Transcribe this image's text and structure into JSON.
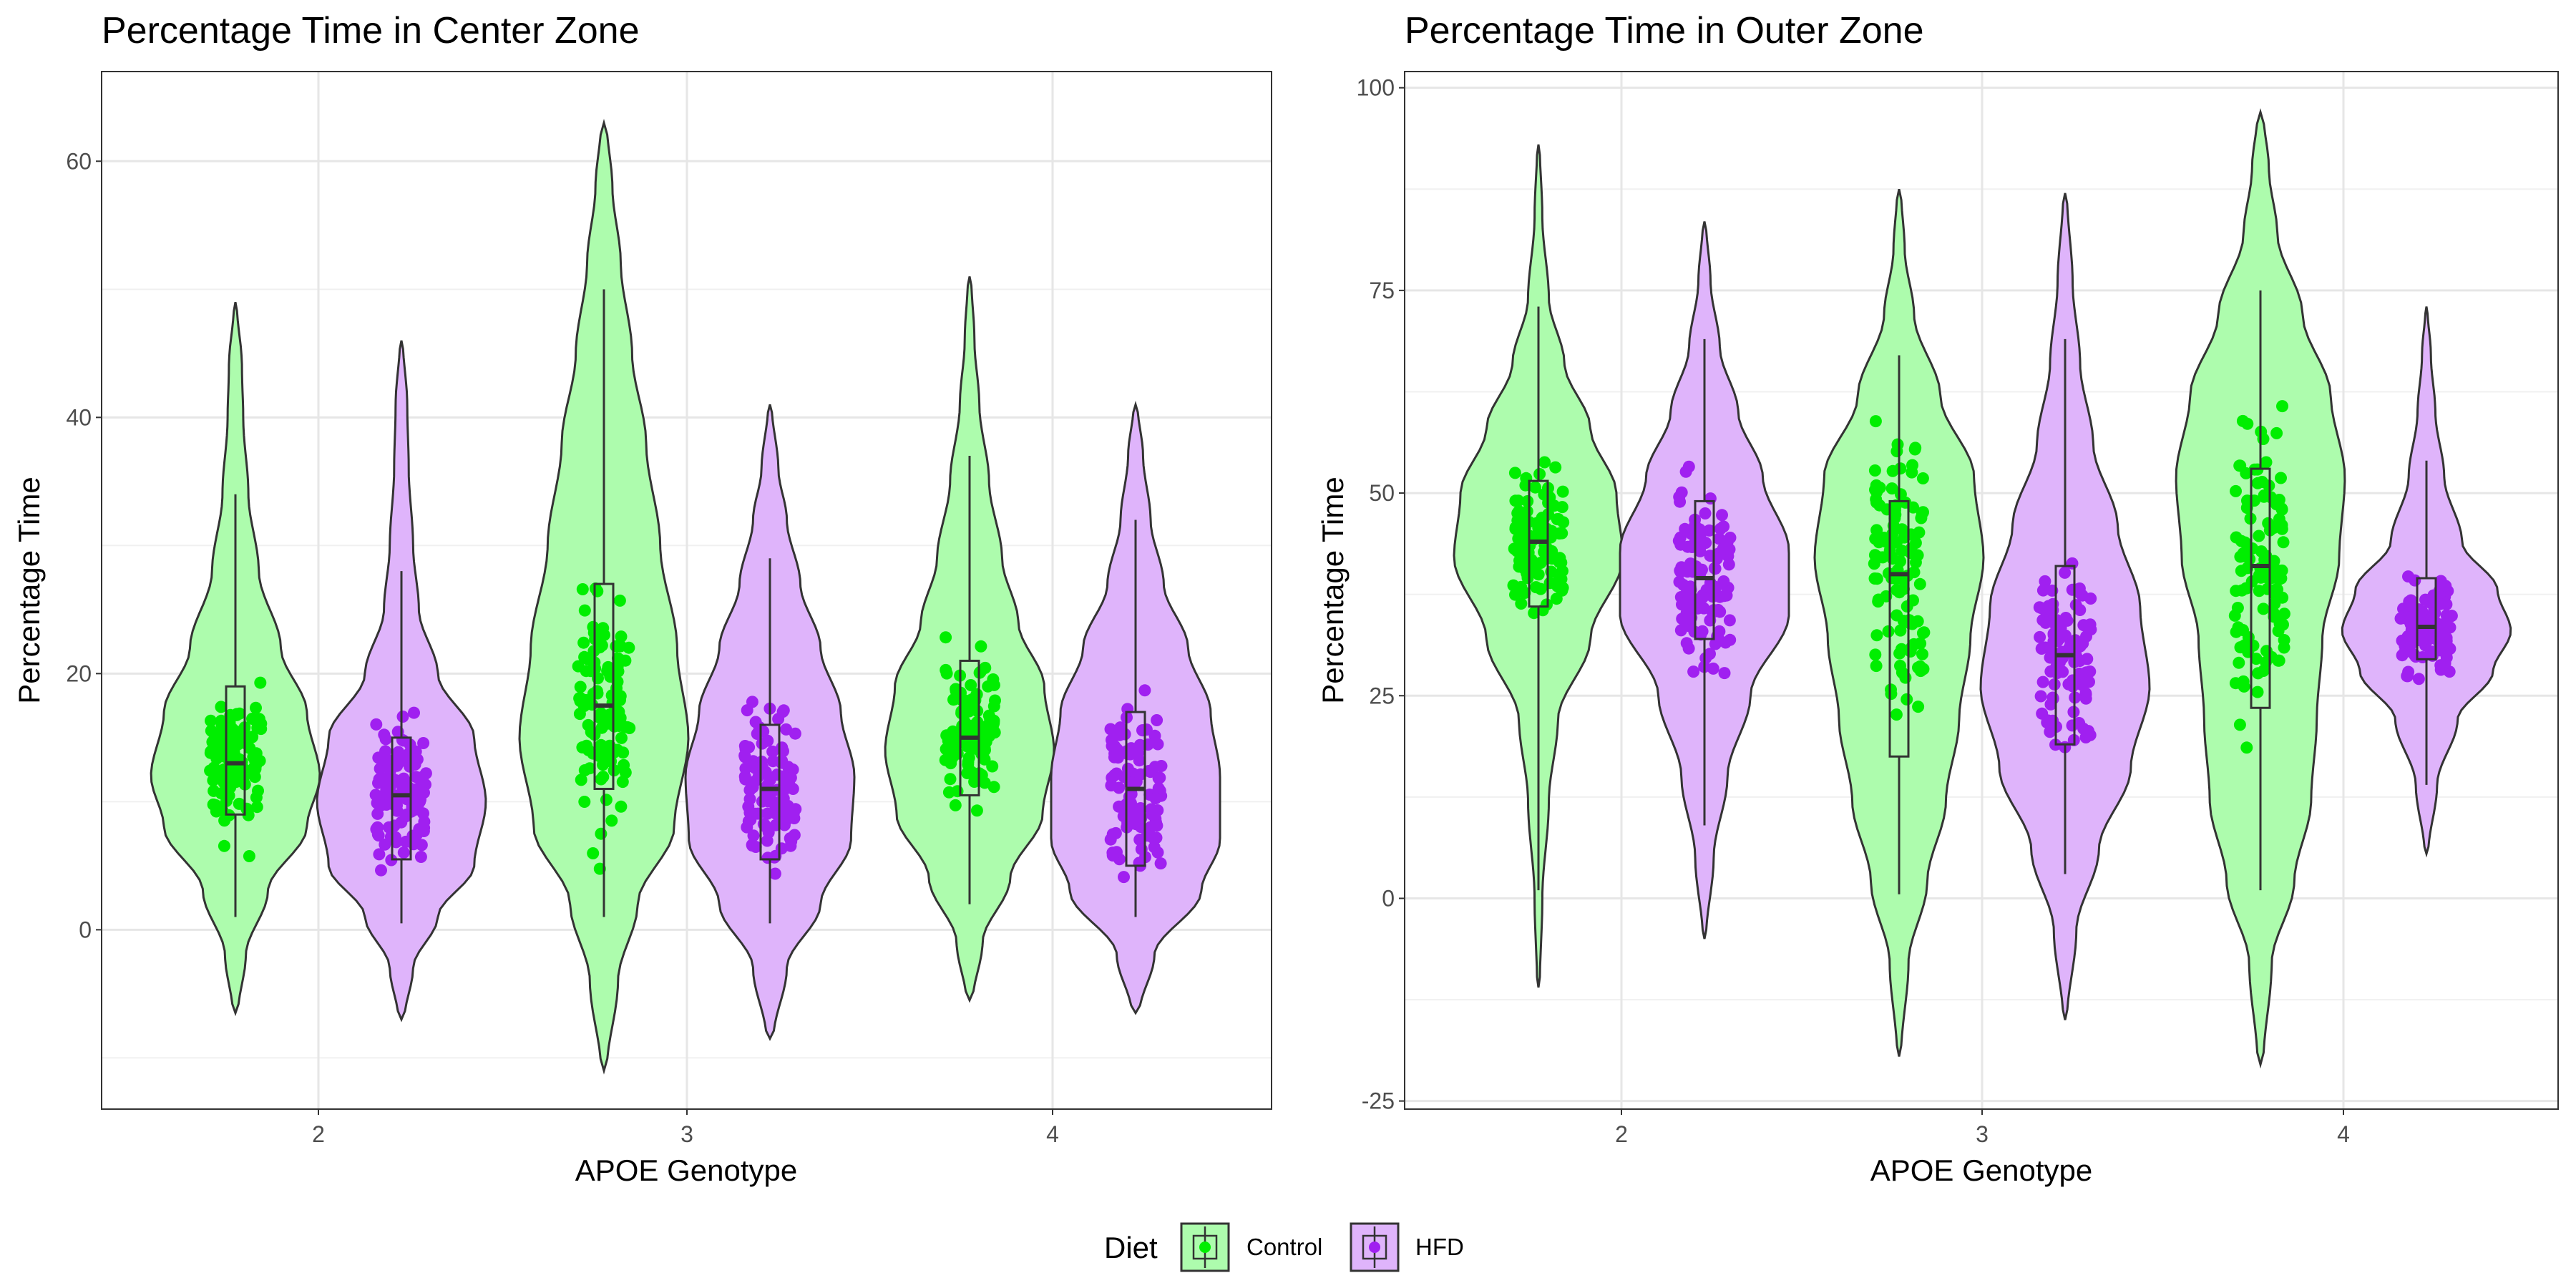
{
  "colors": {
    "control_fill": "#adfcad",
    "control_point": "#00ee00",
    "hfd_fill": "#dfb4fb",
    "hfd_point": "#a020f0",
    "outline": "#333333"
  },
  "legend": {
    "title": "Diet",
    "items": [
      "Control",
      "HFD"
    ]
  },
  "chart_data": [
    {
      "type": "violin",
      "title": "Percentage Time in Center Zone",
      "xlabel": "APOE Genotype",
      "ylabel": "Percentage Time",
      "categories": [
        "2",
        "3",
        "4"
      ],
      "ylim": [
        -14,
        67
      ],
      "yticks": [
        0,
        20,
        40,
        60
      ],
      "grid": true,
      "legend_position": "bottom",
      "groups": [
        {
          "category": "2",
          "diet": "Control",
          "whisker_low": 1,
          "q1": 9,
          "median": 13,
          "q3": 19,
          "whisker_high": 34,
          "violin_min": -6.5,
          "violin_max": 49,
          "density": [
            [
              -6.5,
              0.02
            ],
            [
              -2,
              0.08
            ],
            [
              3,
              0.25
            ],
            [
              8,
              0.55
            ],
            [
              12,
              0.65
            ],
            [
              17,
              0.55
            ],
            [
              22,
              0.35
            ],
            [
              28,
              0.18
            ],
            [
              34,
              0.1
            ],
            [
              40,
              0.06
            ],
            [
              44,
              0.05
            ],
            [
              49,
              0.01
            ]
          ]
        },
        {
          "category": "2",
          "diet": "HFD",
          "whisker_low": 0.5,
          "q1": 5.5,
          "median": 10.5,
          "q3": 15,
          "whisker_high": 28,
          "violin_min": -7,
          "violin_max": 46,
          "density": [
            [
              -7,
              0.02
            ],
            [
              -3,
              0.08
            ],
            [
              1,
              0.25
            ],
            [
              5,
              0.5
            ],
            [
              10,
              0.58
            ],
            [
              15,
              0.5
            ],
            [
              20,
              0.25
            ],
            [
              25,
              0.12
            ],
            [
              30,
              0.08
            ],
            [
              36,
              0.05
            ],
            [
              41,
              0.04
            ],
            [
              46,
              0.01
            ]
          ]
        },
        {
          "category": "3",
          "diet": "Control",
          "whisker_low": 1,
          "q1": 11,
          "median": 17.5,
          "q3": 27,
          "whisker_high": 50,
          "violin_min": -11,
          "violin_max": 63,
          "density": [
            [
              -11,
              0.01
            ],
            [
              -4,
              0.05
            ],
            [
              2,
              0.12
            ],
            [
              8,
              0.25
            ],
            [
              15,
              0.3
            ],
            [
              22,
              0.26
            ],
            [
              30,
              0.2
            ],
            [
              38,
              0.15
            ],
            [
              45,
              0.1
            ],
            [
              52,
              0.06
            ],
            [
              58,
              0.03
            ],
            [
              63,
              0.01
            ]
          ]
        },
        {
          "category": "3",
          "diet": "HFD",
          "whisker_low": 0.5,
          "q1": 5.5,
          "median": 11,
          "q3": 16,
          "whisker_high": 29,
          "violin_min": -8.5,
          "violin_max": 41,
          "density": [
            [
              -8.5,
              0.02
            ],
            [
              -3,
              0.1
            ],
            [
              2,
              0.3
            ],
            [
              7,
              0.48
            ],
            [
              12,
              0.5
            ],
            [
              17,
              0.42
            ],
            [
              22,
              0.3
            ],
            [
              27,
              0.18
            ],
            [
              32,
              0.1
            ],
            [
              36,
              0.05
            ],
            [
              41,
              0.01
            ]
          ]
        },
        {
          "category": "4",
          "diet": "Control",
          "whisker_low": 2,
          "q1": 10.5,
          "median": 15,
          "q3": 21,
          "whisker_high": 37,
          "violin_min": -5.5,
          "violin_max": 51,
          "density": [
            [
              -5.5,
              0.02
            ],
            [
              -1,
              0.08
            ],
            [
              4,
              0.25
            ],
            [
              9,
              0.45
            ],
            [
              14,
              0.52
            ],
            [
              19,
              0.46
            ],
            [
              24,
              0.3
            ],
            [
              29,
              0.2
            ],
            [
              35,
              0.12
            ],
            [
              41,
              0.06
            ],
            [
              46,
              0.03
            ],
            [
              51,
              0.01
            ]
          ]
        },
        {
          "category": "4",
          "diet": "HFD",
          "whisker_low": 1,
          "q1": 5,
          "median": 11,
          "q3": 17,
          "whisker_high": 32,
          "violin_min": -6.5,
          "violin_max": 41,
          "density": [
            [
              -6.5,
              0.02
            ],
            [
              -2,
              0.1
            ],
            [
              3,
              0.35
            ],
            [
              7,
              0.45
            ],
            [
              12,
              0.45
            ],
            [
              17,
              0.4
            ],
            [
              22,
              0.28
            ],
            [
              27,
              0.15
            ],
            [
              32,
              0.08
            ],
            [
              37,
              0.04
            ],
            [
              41,
              0.01
            ]
          ]
        }
      ]
    },
    {
      "type": "violin",
      "title": "Percentage Time in Outer Zone",
      "xlabel": "APOE Genotype",
      "ylabel": "Percentage Time",
      "categories": [
        "2",
        "3",
        "4"
      ],
      "ylim": [
        -26,
        102
      ],
      "yticks": [
        -25,
        0,
        25,
        50,
        75,
        100
      ],
      "grid": true,
      "legend_position": "bottom",
      "groups": [
        {
          "category": "2",
          "diet": "Control",
          "whisker_low": 1,
          "q1": 36,
          "median": 44,
          "q3": 51.5,
          "whisker_high": 73,
          "violin_min": -11,
          "violin_max": 93,
          "density": [
            [
              -11,
              0.01
            ],
            [
              0,
              0.03
            ],
            [
              12,
              0.08
            ],
            [
              22,
              0.15
            ],
            [
              32,
              0.4
            ],
            [
              42,
              0.65
            ],
            [
              50,
              0.6
            ],
            [
              58,
              0.4
            ],
            [
              66,
              0.2
            ],
            [
              74,
              0.08
            ],
            [
              84,
              0.03
            ],
            [
              93,
              0.01
            ]
          ]
        },
        {
          "category": "2",
          "diet": "HFD",
          "whisker_low": 9,
          "q1": 32,
          "median": 39.5,
          "q3": 49,
          "whisker_high": 69,
          "violin_min": -5,
          "violin_max": 83.5,
          "density": [
            [
              -5,
              0.01
            ],
            [
              5,
              0.06
            ],
            [
              15,
              0.15
            ],
            [
              25,
              0.3
            ],
            [
              35,
              0.55
            ],
            [
              43,
              0.55
            ],
            [
              52,
              0.38
            ],
            [
              60,
              0.22
            ],
            [
              68,
              0.1
            ],
            [
              76,
              0.04
            ],
            [
              83.5,
              0.01
            ]
          ]
        },
        {
          "category": "3",
          "diet": "Control",
          "whisker_low": 0.5,
          "q1": 17.5,
          "median": 40,
          "q3": 49,
          "whisker_high": 67,
          "violin_min": -19.5,
          "violin_max": 87.5,
          "density": [
            [
              -19.5,
              0.01
            ],
            [
              -8,
              0.05
            ],
            [
              2,
              0.15
            ],
            [
              12,
              0.25
            ],
            [
              22,
              0.32
            ],
            [
              32,
              0.38
            ],
            [
              42,
              0.45
            ],
            [
              52,
              0.4
            ],
            [
              62,
              0.22
            ],
            [
              72,
              0.08
            ],
            [
              80,
              0.03
            ],
            [
              87.5,
              0.01
            ]
          ]
        },
        {
          "category": "3",
          "diet": "HFD",
          "whisker_low": 3,
          "q1": 19,
          "median": 30,
          "q3": 41,
          "whisker_high": 69,
          "violin_min": -15,
          "violin_max": 87,
          "density": [
            [
              -15,
              0.01
            ],
            [
              -4,
              0.06
            ],
            [
              6,
              0.18
            ],
            [
              16,
              0.35
            ],
            [
              26,
              0.45
            ],
            [
              36,
              0.4
            ],
            [
              46,
              0.28
            ],
            [
              56,
              0.15
            ],
            [
              66,
              0.08
            ],
            [
              76,
              0.04
            ],
            [
              87,
              0.01
            ]
          ]
        },
        {
          "category": "4",
          "diet": "Control",
          "whisker_low": 1,
          "q1": 23.5,
          "median": 41,
          "q3": 53,
          "whisker_high": 75,
          "violin_min": -20.5,
          "violin_max": 97,
          "density": [
            [
              -20.5,
              0.01
            ],
            [
              -8,
              0.04
            ],
            [
              2,
              0.12
            ],
            [
              12,
              0.18
            ],
            [
              22,
              0.2
            ],
            [
              32,
              0.22
            ],
            [
              42,
              0.28
            ],
            [
              52,
              0.3
            ],
            [
              62,
              0.25
            ],
            [
              72,
              0.15
            ],
            [
              82,
              0.06
            ],
            [
              90,
              0.03
            ],
            [
              97,
              0.01
            ]
          ]
        },
        {
          "category": "4",
          "diet": "HFD",
          "whisker_low": 14,
          "q1": 29.5,
          "median": 33.5,
          "q3": 39.5,
          "whisker_high": 54,
          "violin_min": 5.5,
          "violin_max": 73,
          "density": [
            [
              5.5,
              0.02
            ],
            [
              14,
              0.12
            ],
            [
              22,
              0.35
            ],
            [
              28,
              0.75
            ],
            [
              33,
              0.95
            ],
            [
              38,
              0.8
            ],
            [
              44,
              0.4
            ],
            [
              52,
              0.2
            ],
            [
              60,
              0.1
            ],
            [
              67,
              0.05
            ],
            [
              73,
              0.01
            ]
          ]
        }
      ]
    }
  ]
}
